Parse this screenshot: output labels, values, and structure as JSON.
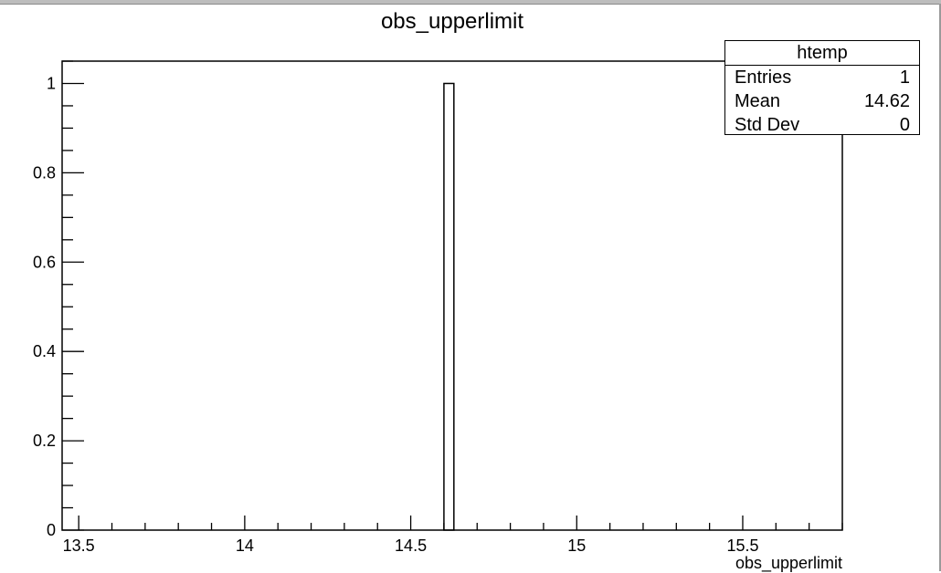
{
  "chart_data": {
    "type": "bar",
    "title": "obs_upperlimit",
    "xlabel": "obs_upperlimit",
    "ylabel": "",
    "xlim": [
      13.45,
      15.8
    ],
    "ylim": [
      0,
      1.05
    ],
    "grid": false,
    "bins": [
      {
        "x_low": 14.6,
        "x_high": 14.63,
        "value": 1
      }
    ],
    "x_ticks": [
      {
        "value": 13.5,
        "label": "13.5"
      },
      {
        "value": 14,
        "label": "14"
      },
      {
        "value": 14.5,
        "label": "14.5"
      },
      {
        "value": 15,
        "label": "15"
      },
      {
        "value": 15.5,
        "label": "15.5"
      }
    ],
    "y_ticks": [
      {
        "value": 0,
        "label": "0"
      },
      {
        "value": 0.2,
        "label": "0.2"
      },
      {
        "value": 0.4,
        "label": "0.4"
      },
      {
        "value": 0.6,
        "label": "0.6"
      },
      {
        "value": 0.8,
        "label": "0.8"
      },
      {
        "value": 1,
        "label": "1"
      }
    ],
    "x_minor_step": 0.1,
    "y_minor_step": 0.05
  },
  "stats": {
    "title": "htemp",
    "rows": [
      {
        "label": "Entries",
        "value": "1"
      },
      {
        "label": "Mean",
        "value": "14.62"
      },
      {
        "label": "Std Dev",
        "value": "0"
      }
    ]
  }
}
